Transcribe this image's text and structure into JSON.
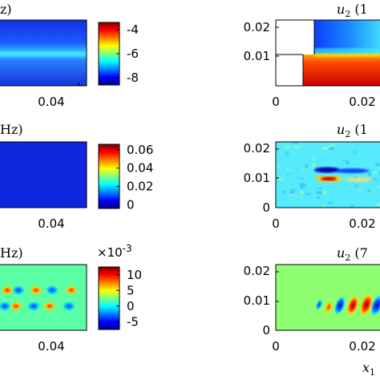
{
  "chart_data": [
    {
      "type": "heatmap",
      "title_fragment": "z)",
      "x_tick_labels": [
        "0.04"
      ],
      "colorbar": {
        "ticks": [
          -4,
          -6,
          -8
        ],
        "range": [
          -8.6,
          -3.4
        ]
      },
      "field": "horizontal band, maximum near y=0.01 (about -6.4), background about -7.8"
    },
    {
      "type": "heatmap",
      "title_italic": "u",
      "title_subscript": "2",
      "title_rest": " (1",
      "x_tick_labels": [
        "0",
        "0.02"
      ],
      "y_tick_labels": [
        "0.02",
        "0.01"
      ],
      "field": "cavity blank region at lower-left; upper layer blue-cyan, lower layer red"
    },
    {
      "type": "heatmap",
      "title_fragment": "Hz)",
      "x_tick_labels": [
        "0.04"
      ],
      "colorbar": {
        "ticks": [
          0.06,
          0.04,
          0.02,
          0
        ],
        "range": [
          -0.004,
          0.066
        ]
      },
      "field": "nearly uniform low values (about 0.004)"
    },
    {
      "type": "heatmap",
      "title_italic": "u",
      "title_subscript": "2",
      "title_rest": " (1",
      "x_tick_labels": [
        "0",
        "0.02"
      ],
      "y_tick_labels": [
        "0.02",
        "0.01",
        "0"
      ],
      "field": "cyan background with red streak near y=0.0095 and blue streak near y=0.011"
    },
    {
      "type": "heatmap",
      "title_fragment": "Hz)",
      "x_tick_labels": [
        "0.04"
      ],
      "colorbar": {
        "ticks": [
          10,
          5,
          0,
          -5
        ],
        "range": [
          -7.5,
          12.5
        ],
        "multiplier_base": "×10",
        "multiplier_exponent": "-3"
      },
      "field": "alternating red/blue blob pairs in two rows near y=0.0125 and y=0.0085"
    },
    {
      "type": "heatmap",
      "title_italic": "u",
      "title_subscript": "2",
      "title_rest": " (7",
      "x_tick_labels": [
        "0",
        "0.02"
      ],
      "y_tick_labels": [
        "0.02",
        "0.01",
        "0"
      ],
      "x_axis_italic": "x",
      "x_axis_subscript": "1",
      "field": "green background with oscillating red/blue blobs around y=0.0105"
    }
  ]
}
